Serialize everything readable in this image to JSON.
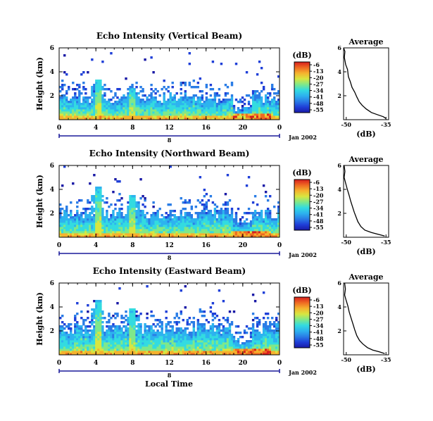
{
  "colors": {
    "colormap": [
      "#1a1aa6",
      "#1f3fd8",
      "#2a7de6",
      "#2db3ef",
      "#33dbe0",
      "#7fe88a",
      "#d8e640",
      "#f5b32e",
      "#ef6a22",
      "#d81e1e"
    ],
    "axis": "#000000",
    "date_bar": "#1a1a9a"
  },
  "xlabel": "Local Time",
  "date_label": "Jan 2002",
  "date_bar_label": "8",
  "chart_data": [
    {
      "type": "heatmap",
      "title": "Echo Intensity (Vertical Beam)",
      "ylabel": "Height (km)",
      "x_ticks": [
        "0",
        "4",
        "8",
        "12",
        "16",
        "20",
        "0"
      ],
      "y_ticks": [
        "6",
        "4",
        "2"
      ],
      "xlim": [
        0,
        24
      ],
      "ylim": [
        0,
        6
      ],
      "colorbar_label": "(dB)",
      "colorbar_ticks": [
        "-6",
        "-13",
        "-20",
        "-27",
        "-34",
        "-41",
        "-48",
        "-55"
      ],
      "colorbar_range": [
        -55,
        -6
      ],
      "features": {
        "base_layer_top_km": 1.8,
        "spikes_at_hours": [
          4.2,
          8.0
        ],
        "spike_top_km": [
          3.3,
          2.6
        ],
        "warm_patch_hours": [
          19,
          23
        ],
        "sparse_level": 0.15
      },
      "profile": {
        "title": "Average",
        "xlabel": "(dB)",
        "x_ticks": [
          "-50",
          "-35"
        ],
        "y_ticks": [
          "6",
          "4",
          "2"
        ],
        "xlim": [
          -51,
          -34
        ],
        "ylim": [
          0,
          6
        ],
        "points": [
          [
            -51,
            6
          ],
          [
            -50.5,
            5.7
          ],
          [
            -50.7,
            5.2
          ],
          [
            -50.2,
            4.6
          ],
          [
            -49.5,
            4.2
          ],
          [
            -49.2,
            3.6
          ],
          [
            -48.5,
            3.2
          ],
          [
            -47.8,
            2.7
          ],
          [
            -46.8,
            2.3
          ],
          [
            -46,
            1.9
          ],
          [
            -45.1,
            1.5
          ],
          [
            -44,
            1.2
          ],
          [
            -42.5,
            0.9
          ],
          [
            -40.5,
            0.6
          ],
          [
            -38,
            0.4
          ],
          [
            -36,
            0.25
          ],
          [
            -35,
            0.1
          ]
        ]
      }
    },
    {
      "type": "heatmap",
      "title": "Echo Intensity (Northward Beam)",
      "ylabel": "Height (km)",
      "x_ticks": [
        "0",
        "4",
        "8",
        "12",
        "16",
        "20",
        "0"
      ],
      "y_ticks": [
        "6",
        "4",
        "2"
      ],
      "xlim": [
        0,
        24
      ],
      "ylim": [
        0,
        6
      ],
      "colorbar_label": "(dB)",
      "colorbar_ticks": [
        "-6",
        "-13",
        "-20",
        "-27",
        "-34",
        "-41",
        "-48",
        "-55"
      ],
      "colorbar_range": [
        -55,
        -6
      ],
      "features": {
        "base_layer_top_km": 2.0,
        "spikes_at_hours": [
          4.2,
          8.0
        ],
        "spike_top_km": [
          4.2,
          3.5
        ],
        "warm_patch_hours": [
          19,
          23
        ],
        "sparse_level": 0.2
      },
      "profile": {
        "title": "Average",
        "xlabel": "(dB)",
        "x_ticks": [
          "-50",
          "-35"
        ],
        "y_ticks": [
          "6",
          "4",
          "2"
        ],
        "xlim": [
          -51,
          -34
        ],
        "ylim": [
          0,
          6
        ],
        "points": [
          [
            -50.8,
            6
          ],
          [
            -50.5,
            5.5
          ],
          [
            -50.8,
            5
          ],
          [
            -50.2,
            4.5
          ],
          [
            -49.6,
            4
          ],
          [
            -48.9,
            3.5
          ],
          [
            -48.3,
            3
          ],
          [
            -47.7,
            2.6
          ],
          [
            -47,
            2.1
          ],
          [
            -46.3,
            1.7
          ],
          [
            -45.6,
            1.3
          ],
          [
            -44.5,
            0.9
          ],
          [
            -43,
            0.6
          ],
          [
            -40.5,
            0.4
          ],
          [
            -38,
            0.25
          ],
          [
            -35.5,
            0.1
          ]
        ]
      }
    },
    {
      "type": "heatmap",
      "title": "Echo Intensity (Eastward Beam)",
      "ylabel": "Height (km)",
      "x_ticks": [
        "0",
        "4",
        "8",
        "12",
        "16",
        "20",
        "0"
      ],
      "y_ticks": [
        "6",
        "4",
        "2"
      ],
      "xlim": [
        0,
        24
      ],
      "ylim": [
        0,
        6
      ],
      "colorbar_label": "(dB)",
      "colorbar_ticks": [
        "-6",
        "-13",
        "-20",
        "-27",
        "-34",
        "-41",
        "-48",
        "-55"
      ],
      "colorbar_range": [
        -55,
        -6
      ],
      "features": {
        "base_layer_top_km": 2.2,
        "spikes_at_hours": [
          4.2,
          8.0
        ],
        "spike_top_km": [
          4.6,
          3.8
        ],
        "warm_patch_hours": [
          19,
          23
        ],
        "sparse_level": 0.25
      },
      "profile": {
        "title": "Average",
        "xlabel": "(dB)",
        "x_ticks": [
          "-50",
          "-35"
        ],
        "y_ticks": [
          "6",
          "4",
          "2"
        ],
        "xlim": [
          -51,
          -34
        ],
        "ylim": [
          0,
          6
        ],
        "points": [
          [
            -50.6,
            6
          ],
          [
            -50.3,
            5.5
          ],
          [
            -50.6,
            5
          ],
          [
            -50.1,
            4.6
          ],
          [
            -49.4,
            4.1
          ],
          [
            -48.9,
            3.6
          ],
          [
            -48.2,
            3.1
          ],
          [
            -47.5,
            2.6
          ],
          [
            -46.8,
            2.1
          ],
          [
            -46,
            1.6
          ],
          [
            -45,
            1.2
          ],
          [
            -43.7,
            0.9
          ],
          [
            -42,
            0.6
          ],
          [
            -40,
            0.4
          ],
          [
            -37.5,
            0.25
          ],
          [
            -35.5,
            0.1
          ]
        ]
      }
    }
  ]
}
